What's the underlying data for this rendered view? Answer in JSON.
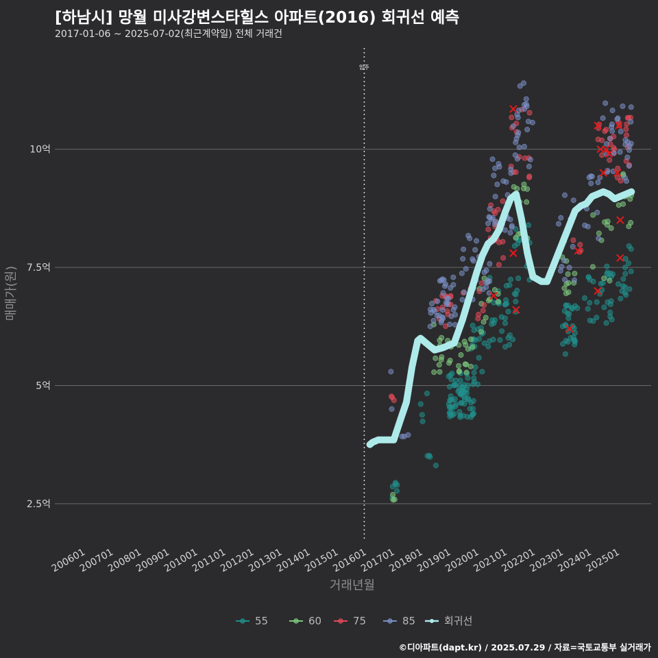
{
  "title": "[하남시] 망월 미사강변스타힐스 아파트(2016) 회귀선 예측",
  "subtitle": "2017-01-06 ~ 2025-07-02(최근계약일) 전체 거래건",
  "credit": "©디아파트(dapt.kr) / 2025.07.29 / 자료=국토교통부 실거래가",
  "colors": {
    "background": "#2b2b2d",
    "grid": "#6a6a6c",
    "s55": "#21908c",
    "s60": "#7fc97f",
    "s75": "#e34a5a",
    "s85": "#7b8fc4",
    "regression": "#aeeaea",
    "highlight_x": "#e41a1c"
  },
  "chart_data": {
    "type": "scatter",
    "title": "[하남시] 망월 미사강변스타힐스 아파트(2016) 회귀선 예측",
    "xlabel": "거래년월",
    "ylabel": "매매가(원)",
    "ylim": [
      1.7,
      12.2
    ],
    "xlim": [
      2005.0,
      2026.2
    ],
    "x_ticks": [
      {
        "value": 2006,
        "label": "200601"
      },
      {
        "value": 2007,
        "label": "200701"
      },
      {
        "value": 2008,
        "label": "200801"
      },
      {
        "value": 2009,
        "label": "200901"
      },
      {
        "value": 2010,
        "label": "201001"
      },
      {
        "value": 2011,
        "label": "201101"
      },
      {
        "value": 2012,
        "label": "201201"
      },
      {
        "value": 2013,
        "label": "201301"
      },
      {
        "value": 2014,
        "label": "201401"
      },
      {
        "value": 2015,
        "label": "201501"
      },
      {
        "value": 2016,
        "label": "201601"
      },
      {
        "value": 2017,
        "label": "201701"
      },
      {
        "value": 2018,
        "label": "201801"
      },
      {
        "value": 2019,
        "label": "201901"
      },
      {
        "value": 2020,
        "label": "202001"
      },
      {
        "value": 2021,
        "label": "202101"
      },
      {
        "value": 2022,
        "label": "202201"
      },
      {
        "value": 2023,
        "label": "202301"
      },
      {
        "value": 2024,
        "label": "202401"
      },
      {
        "value": 2025,
        "label": "202501"
      }
    ],
    "y_ticks": [
      {
        "value": 2.5,
        "label": "2.5억"
      },
      {
        "value": 5,
        "label": "5억"
      },
      {
        "value": 7.5,
        "label": "7.5억"
      },
      {
        "value": 10,
        "label": "10억"
      }
    ],
    "annotation": {
      "x": 2016.0,
      "label": "입주"
    },
    "legend": [
      {
        "key": "s55",
        "label": "55"
      },
      {
        "key": "s60",
        "label": "60"
      },
      {
        "key": "s75",
        "label": "75"
      },
      {
        "key": "s85",
        "label": "85"
      },
      {
        "key": "regression",
        "label": "회귀선"
      }
    ],
    "regression": {
      "x": [
        2016.2,
        2016.3,
        2016.5,
        2016.9,
        2017.05,
        2017.3,
        2017.5,
        2017.7,
        2017.9,
        2018.0,
        2018.2,
        2018.5,
        2018.8,
        2019.0,
        2019.2,
        2019.5,
        2019.8,
        2020.0,
        2020.2,
        2020.4,
        2020.6,
        2020.8,
        2021.0,
        2021.2,
        2021.4,
        2021.6,
        2021.8,
        2022.0,
        2022.15,
        2022.3,
        2022.5,
        2022.7,
        2022.9,
        2023.1,
        2023.3,
        2023.5,
        2023.7,
        2023.9,
        2024.1,
        2024.3,
        2024.5,
        2024.7,
        2024.9,
        2025.1,
        2025.3,
        2025.5
      ],
      "y": [
        3.75,
        3.8,
        3.85,
        3.85,
        3.85,
        4.3,
        4.65,
        5.4,
        5.95,
        6.0,
        5.9,
        5.75,
        5.8,
        5.85,
        5.9,
        6.4,
        7.0,
        7.4,
        7.75,
        8.0,
        8.1,
        8.3,
        8.65,
        8.95,
        9.05,
        8.5,
        7.8,
        7.3,
        7.25,
        7.2,
        7.2,
        7.5,
        7.8,
        8.1,
        8.4,
        8.7,
        8.8,
        8.85,
        9.0,
        9.05,
        9.1,
        9.05,
        8.95,
        9.0,
        9.05,
        9.1
      ],
      "x_actual_note": "piecewise approximation of fitted curve"
    },
    "highlights": [
      [
        2021.3,
        10.85
      ],
      [
        2021.3,
        7.8
      ],
      [
        2020.6,
        6.9
      ],
      [
        2021.4,
        6.6
      ],
      [
        2023.3,
        6.2
      ],
      [
        2023.6,
        7.85
      ],
      [
        2024.3,
        10.5
      ],
      [
        2024.4,
        10.0
      ],
      [
        2024.5,
        9.5
      ],
      [
        2024.6,
        10.0
      ],
      [
        2024.7,
        9.9
      ],
      [
        2025.0,
        9.5
      ],
      [
        2025.05,
        10.5
      ],
      [
        2025.1,
        8.5
      ],
      [
        2024.3,
        7.0
      ],
      [
        2025.1,
        7.7
      ]
    ],
    "series": [
      {
        "name": "55",
        "key": "s55",
        "clusters": [
          {
            "x": [
              2017.0,
              2017.2
            ],
            "y": [
              2.5,
              3.0
            ],
            "n": 6
          },
          {
            "x": [
              2018.0,
              2018.6
            ],
            "y": [
              3.3,
              4.9
            ],
            "n": 8
          },
          {
            "x": [
              2019.0,
              2019.9
            ],
            "y": [
              4.3,
              5.3
            ],
            "n": 70
          },
          {
            "x": [
              2019.8,
              2020.3
            ],
            "y": [
              5.0,
              6.3
            ],
            "n": 20
          },
          {
            "x": [
              2020.4,
              2021.4
            ],
            "y": [
              5.8,
              7.4
            ],
            "n": 35
          },
          {
            "x": [
              2021.3,
              2021.9
            ],
            "y": [
              7.0,
              8.4
            ],
            "n": 16
          },
          {
            "x": [
              2023.0,
              2023.6
            ],
            "y": [
              5.6,
              6.7
            ],
            "n": 28
          },
          {
            "x": [
              2023.8,
              2024.9
            ],
            "y": [
              6.3,
              7.6
            ],
            "n": 30
          },
          {
            "x": [
              2025.0,
              2025.5
            ],
            "y": [
              6.8,
              8.2
            ],
            "n": 16
          }
        ]
      },
      {
        "name": "60",
        "key": "s60",
        "clusters": [
          {
            "x": [
              2017.0,
              2017.1
            ],
            "y": [
              2.55,
              2.7
            ],
            "n": 3
          },
          {
            "x": [
              2018.4,
              2019.1
            ],
            "y": [
              5.2,
              6.3
            ],
            "n": 16
          },
          {
            "x": [
              2019.3,
              2019.9
            ],
            "y": [
              5.2,
              6.0
            ],
            "n": 14
          },
          {
            "x": [
              2020.0,
              2020.8
            ],
            "y": [
              6.0,
              7.3
            ],
            "n": 12
          },
          {
            "x": [
              2021.3,
              2021.9
            ],
            "y": [
              8.0,
              9.3
            ],
            "n": 12
          },
          {
            "x": [
              2023.0,
              2023.5
            ],
            "y": [
              6.9,
              7.8
            ],
            "n": 10
          },
          {
            "x": [
              2024.1,
              2024.8
            ],
            "y": [
              7.2,
              8.9
            ],
            "n": 10
          },
          {
            "x": [
              2025.0,
              2025.5
            ],
            "y": [
              8.3,
              9.5
            ],
            "n": 10
          }
        ]
      },
      {
        "name": "75",
        "key": "s75",
        "clusters": [
          {
            "x": [
              2016.9,
              2017.1
            ],
            "y": [
              4.6,
              4.8
            ],
            "n": 3
          },
          {
            "x": [
              2018.4,
              2019.1
            ],
            "y": [
              6.2,
              7.0
            ],
            "n": 14
          },
          {
            "x": [
              2019.5,
              2020.4
            ],
            "y": [
              6.3,
              7.2
            ],
            "n": 12
          },
          {
            "x": [
              2020.4,
              2021.0
            ],
            "y": [
              7.5,
              9.1
            ],
            "n": 16
          },
          {
            "x": [
              2021.2,
              2021.9
            ],
            "y": [
              9.4,
              10.9
            ],
            "n": 14
          },
          {
            "x": [
              2023.4,
              2023.8
            ],
            "y": [
              7.8,
              8.1
            ],
            "n": 4
          },
          {
            "x": [
              2024.3,
              2024.9
            ],
            "y": [
              9.3,
              10.6
            ],
            "n": 14
          },
          {
            "x": [
              2025.0,
              2025.5
            ],
            "y": [
              9.3,
              10.7
            ],
            "n": 14
          }
        ]
      },
      {
        "name": "85",
        "key": "s85",
        "clusters": [
          {
            "x": [
              2016.9,
              2017.6
            ],
            "y": [
              3.5,
              5.4
            ],
            "n": 5
          },
          {
            "x": [
              2018.3,
              2019.3
            ],
            "y": [
              6.2,
              7.3
            ],
            "n": 36
          },
          {
            "x": [
              2019.4,
              2020.5
            ],
            "y": [
              6.7,
              8.2
            ],
            "n": 26
          },
          {
            "x": [
              2020.4,
              2021.3
            ],
            "y": [
              8.2,
              9.8
            ],
            "n": 30
          },
          {
            "x": [
              2021.3,
              2022.0
            ],
            "y": [
              9.6,
              11.4
            ],
            "n": 24
          },
          {
            "x": [
              2022.9,
              2023.5
            ],
            "y": [
              7.2,
              9.5
            ],
            "n": 14
          },
          {
            "x": [
              2023.8,
              2024.4
            ],
            "y": [
              8.0,
              9.6
            ],
            "n": 12
          },
          {
            "x": [
              2024.4,
              2025.5
            ],
            "y": [
              9.3,
              11.0
            ],
            "n": 30
          }
        ]
      }
    ]
  }
}
